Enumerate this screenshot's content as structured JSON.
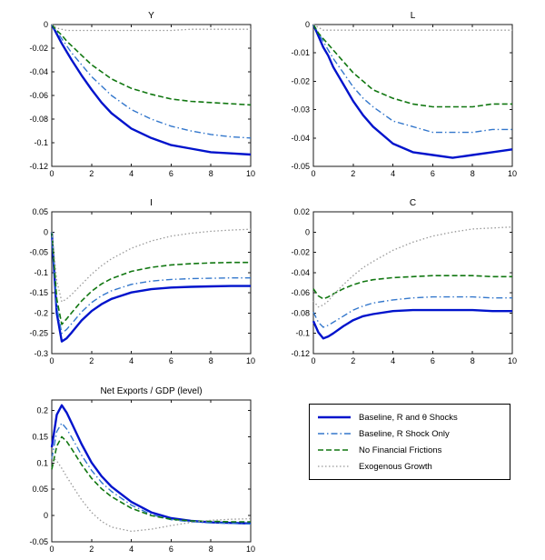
{
  "figure": {
    "background": "#ffffff"
  },
  "styles": {
    "solid": {
      "color": "#0013cc",
      "width": 2.4,
      "dash": ""
    },
    "dashdot": {
      "color": "#3377cc",
      "width": 1.4,
      "dash": "7 3 1.5 3"
    },
    "dashed": {
      "color": "#117711",
      "width": 1.6,
      "dash": "6 3"
    },
    "dotted": {
      "color": "#999999",
      "width": 1.3,
      "dash": "1.5 2.5"
    }
  },
  "legend": {
    "entries": [
      {
        "label": "Baseline, R and θ Shocks",
        "style": "solid"
      },
      {
        "label": "Baseline, R Shock Only",
        "style": "dashdot"
      },
      {
        "label": "No Financial Frictions",
        "style": "dashed"
      },
      {
        "label": "Exogenous Growth",
        "style": "dotted"
      }
    ]
  },
  "chart_data": [
    {
      "type": "line",
      "title": "Y",
      "x": [
        0,
        0.25,
        0.5,
        0.75,
        1,
        1.5,
        2,
        2.5,
        3,
        4,
        5,
        6,
        7,
        8,
        9,
        10
      ],
      "xlim": [
        0,
        10
      ],
      "ylim": [
        -0.12,
        0
      ],
      "xticks": [
        0,
        2,
        4,
        6,
        8,
        10
      ],
      "yticks": [
        "0",
        "-0.02",
        "-0.04",
        "-0.06",
        "-0.08",
        "-0.1",
        "-0.12"
      ],
      "series": [
        {
          "name": "Baseline, R and θ Shocks",
          "style": "solid",
          "values": [
            0,
            -0.008,
            -0.016,
            -0.023,
            -0.03,
            -0.043,
            -0.055,
            -0.066,
            -0.075,
            -0.088,
            -0.096,
            -0.102,
            -0.105,
            -0.108,
            -0.109,
            -0.11
          ]
        },
        {
          "name": "Baseline, R Shock Only",
          "style": "dashdot",
          "values": [
            0,
            -0.006,
            -0.012,
            -0.018,
            -0.024,
            -0.034,
            -0.044,
            -0.052,
            -0.06,
            -0.072,
            -0.08,
            -0.086,
            -0.09,
            -0.093,
            -0.095,
            -0.096
          ]
        },
        {
          "name": "No Financial Frictions",
          "style": "dashed",
          "values": [
            0,
            -0.005,
            -0.009,
            -0.014,
            -0.018,
            -0.026,
            -0.034,
            -0.04,
            -0.046,
            -0.054,
            -0.059,
            -0.063,
            -0.065,
            -0.066,
            -0.067,
            -0.068
          ]
        },
        {
          "name": "Exogenous Growth",
          "style": "dotted",
          "values": [
            0,
            -0.003,
            -0.004,
            -0.005,
            -0.005,
            -0.005,
            -0.005,
            -0.005,
            -0.005,
            -0.005,
            -0.005,
            -0.005,
            -0.004,
            -0.004,
            -0.004,
            -0.004
          ]
        }
      ]
    },
    {
      "type": "line",
      "title": "L",
      "x": [
        0,
        0.25,
        0.5,
        0.75,
        1,
        1.5,
        2,
        2.5,
        3,
        4,
        5,
        6,
        7,
        8,
        9,
        10
      ],
      "xlim": [
        0,
        10
      ],
      "ylim": [
        -0.05,
        0
      ],
      "xticks": [
        0,
        2,
        4,
        6,
        8,
        10
      ],
      "yticks": [
        "0",
        "-0.01",
        "-0.02",
        "-0.03",
        "-0.04",
        "-0.05"
      ],
      "series": [
        {
          "name": "Baseline, R and θ Shocks",
          "style": "solid",
          "values": [
            0,
            -0.004,
            -0.008,
            -0.011,
            -0.015,
            -0.021,
            -0.027,
            -0.032,
            -0.036,
            -0.042,
            -0.045,
            -0.046,
            -0.047,
            -0.046,
            -0.045,
            -0.044
          ]
        },
        {
          "name": "Baseline, R Shock Only",
          "style": "dashdot",
          "values": [
            0,
            -0.003,
            -0.006,
            -0.009,
            -0.012,
            -0.017,
            -0.022,
            -0.026,
            -0.029,
            -0.034,
            -0.036,
            -0.038,
            -0.038,
            -0.038,
            -0.037,
            -0.037
          ]
        },
        {
          "name": "No Financial Frictions",
          "style": "dashed",
          "values": [
            0,
            -0.003,
            -0.005,
            -0.007,
            -0.009,
            -0.013,
            -0.017,
            -0.02,
            -0.023,
            -0.026,
            -0.028,
            -0.029,
            -0.029,
            -0.029,
            -0.028,
            -0.028
          ]
        },
        {
          "name": "Exogenous Growth",
          "style": "dotted",
          "values": [
            0,
            -0.001,
            -0.002,
            -0.002,
            -0.002,
            -0.002,
            -0.002,
            -0.002,
            -0.002,
            -0.002,
            -0.002,
            -0.002,
            -0.002,
            -0.002,
            -0.002,
            -0.002
          ]
        }
      ]
    },
    {
      "type": "line",
      "title": "I",
      "x": [
        0,
        0.25,
        0.5,
        0.75,
        1,
        1.5,
        2,
        2.5,
        3,
        4,
        5,
        6,
        7,
        8,
        9,
        10
      ],
      "xlim": [
        0,
        10
      ],
      "ylim": [
        -0.3,
        0.05
      ],
      "xticks": [
        0,
        2,
        4,
        6,
        8,
        10
      ],
      "yticks": [
        "0.05",
        "0",
        "-0.05",
        "-0.1",
        "-0.15",
        "-0.2",
        "-0.25",
        "-0.3"
      ],
      "series": [
        {
          "name": "Baseline, R and θ Shocks",
          "style": "solid",
          "values": [
            0,
            -0.2,
            -0.27,
            -0.262,
            -0.248,
            -0.218,
            -0.195,
            -0.178,
            -0.165,
            -0.149,
            -0.141,
            -0.137,
            -0.135,
            -0.134,
            -0.133,
            -0.133
          ]
        },
        {
          "name": "Baseline, R Shock Only",
          "style": "dashdot",
          "values": [
            0,
            -0.185,
            -0.25,
            -0.24,
            -0.226,
            -0.197,
            -0.174,
            -0.157,
            -0.145,
            -0.129,
            -0.121,
            -0.117,
            -0.115,
            -0.114,
            -0.113,
            -0.113
          ]
        },
        {
          "name": "No Financial Frictions",
          "style": "dashed",
          "values": [
            0,
            -0.165,
            -0.228,
            -0.214,
            -0.199,
            -0.17,
            -0.146,
            -0.128,
            -0.115,
            -0.097,
            -0.087,
            -0.081,
            -0.078,
            -0.076,
            -0.075,
            -0.075
          ]
        },
        {
          "name": "Exogenous Growth",
          "style": "dotted",
          "values": [
            0,
            -0.12,
            -0.172,
            -0.165,
            -0.154,
            -0.129,
            -0.104,
            -0.083,
            -0.066,
            -0.04,
            -0.022,
            -0.01,
            -0.003,
            0.002,
            0.005,
            0.007
          ]
        }
      ]
    },
    {
      "type": "line",
      "title": "C",
      "x": [
        0,
        0.25,
        0.5,
        0.75,
        1,
        1.5,
        2,
        2.5,
        3,
        4,
        5,
        6,
        7,
        8,
        9,
        10
      ],
      "xlim": [
        0,
        10
      ],
      "ylim": [
        -0.12,
        0.02
      ],
      "xticks": [
        0,
        2,
        4,
        6,
        8,
        10
      ],
      "yticks": [
        "0.02",
        "0",
        "-0.02",
        "-0.04",
        "-0.06",
        "-0.08",
        "-0.1",
        "-0.12"
      ],
      "series": [
        {
          "name": "Baseline, R and θ Shocks",
          "style": "solid",
          "values": [
            -0.088,
            -0.099,
            -0.105,
            -0.103,
            -0.1,
            -0.093,
            -0.087,
            -0.083,
            -0.081,
            -0.078,
            -0.077,
            -0.077,
            -0.077,
            -0.077,
            -0.078,
            -0.078
          ]
        },
        {
          "name": "Baseline, R Shock Only",
          "style": "dashdot",
          "values": [
            -0.079,
            -0.089,
            -0.094,
            -0.092,
            -0.089,
            -0.083,
            -0.077,
            -0.073,
            -0.07,
            -0.067,
            -0.065,
            -0.064,
            -0.064,
            -0.064,
            -0.065,
            -0.065
          ]
        },
        {
          "name": "No Financial Frictions",
          "style": "dashed",
          "values": [
            -0.056,
            -0.063,
            -0.066,
            -0.064,
            -0.061,
            -0.056,
            -0.052,
            -0.049,
            -0.047,
            -0.045,
            -0.044,
            -0.043,
            -0.043,
            -0.043,
            -0.044,
            -0.044
          ]
        },
        {
          "name": "Exogenous Growth",
          "style": "dotted",
          "values": [
            -0.068,
            -0.074,
            -0.072,
            -0.068,
            -0.062,
            -0.052,
            -0.043,
            -0.035,
            -0.029,
            -0.018,
            -0.01,
            -0.004,
            0.0,
            0.003,
            0.004,
            0.005
          ]
        }
      ]
    },
    {
      "type": "line",
      "title": "Net Exports / GDP (level)",
      "x": [
        0,
        0.25,
        0.5,
        0.75,
        1,
        1.5,
        2,
        2.5,
        3,
        4,
        5,
        6,
        7,
        8,
        9,
        10
      ],
      "xlim": [
        0,
        10
      ],
      "ylim": [
        -0.05,
        0.22
      ],
      "xticks": [
        0,
        2,
        4,
        6,
        8,
        10
      ],
      "yticks": [
        "0.2",
        "0.15",
        "0.1",
        "0.05",
        "0",
        "-0.05"
      ],
      "series": [
        {
          "name": "Baseline, R and θ Shocks",
          "style": "solid",
          "values": [
            0.13,
            0.192,
            0.21,
            0.196,
            0.176,
            0.136,
            0.101,
            0.075,
            0.055,
            0.026,
            0.006,
            -0.005,
            -0.01,
            -0.013,
            -0.014,
            -0.015
          ]
        },
        {
          "name": "Baseline, R Shock Only",
          "style": "dashdot",
          "values": [
            0.108,
            0.16,
            0.176,
            0.165,
            0.149,
            0.115,
            0.086,
            0.063,
            0.046,
            0.02,
            0.002,
            -0.008,
            -0.012,
            -0.014,
            -0.015,
            -0.016
          ]
        },
        {
          "name": "No Financial Frictions",
          "style": "dashed",
          "values": [
            0.088,
            0.132,
            0.15,
            0.141,
            0.127,
            0.097,
            0.071,
            0.051,
            0.036,
            0.014,
            0.0,
            -0.007,
            -0.01,
            -0.011,
            -0.012,
            -0.012
          ]
        },
        {
          "name": "Exogenous Growth",
          "style": "dotted",
          "values": [
            0.112,
            0.104,
            0.09,
            0.074,
            0.059,
            0.03,
            0.006,
            -0.011,
            -0.022,
            -0.03,
            -0.026,
            -0.019,
            -0.013,
            -0.009,
            -0.007,
            -0.006
          ]
        }
      ]
    }
  ]
}
